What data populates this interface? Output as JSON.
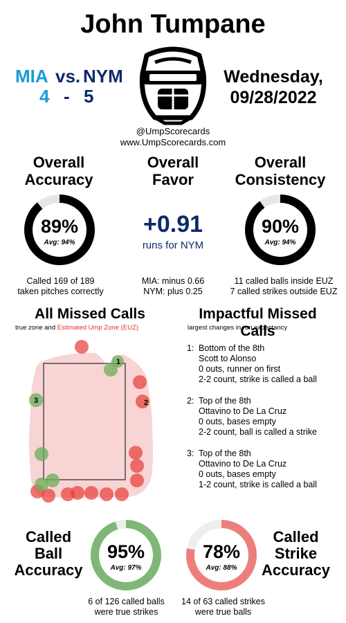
{
  "header": {
    "umpire_name": "John Tumpane",
    "away_team": "MIA",
    "vs": "vs.",
    "home_team": "NYM",
    "away_score": "4",
    "dash": "-",
    "home_score": "5",
    "date_line1": "Wednesday,",
    "date_line2": "09/28/2022",
    "handle": "@UmpScorecards",
    "website": "www.UmpScorecards.com",
    "colors": {
      "away": "#1b9ad6",
      "home": "#0c2a6b"
    }
  },
  "accuracy": {
    "title1": "Overall",
    "title2": "Accuracy",
    "value": "89%",
    "avg": "Avg: 94%",
    "fraction": 0.89,
    "desc1": "Called 169 of 189",
    "desc2": "taken pitches correctly"
  },
  "favor": {
    "title1": "Overall",
    "title2": "Favor",
    "value": "+0.91",
    "label": "runs for NYM",
    "line1": "MIA: minus 0.66",
    "line2": "NYM: plus 0.25",
    "color": "#0c2a6b"
  },
  "consistency": {
    "title1": "Overall",
    "title2": "Consistency",
    "value": "90%",
    "avg": "Avg: 94%",
    "fraction": 0.9,
    "desc1": "11 called balls inside EUZ",
    "desc2": "7 called strikes outside EUZ"
  },
  "missed": {
    "title": "All Missed Calls",
    "sub_prefix": "true zone and",
    "sub_euz": "Estimated Ump Zone (EUZ)",
    "sub_euz_color": "#e0312c",
    "marker_1": "1",
    "marker_2": "2",
    "marker_3": "3",
    "colors": {
      "green": "#6fae5c",
      "red": "#e8403c",
      "zone_fill": "#f6c9c9"
    }
  },
  "impactful": {
    "title": "Impactful Missed Calls",
    "subtitle": "largest changes in run expectancy",
    "calls": [
      {
        "num": "1:",
        "inning": "Bottom of the 8th",
        "matchup": "Scott to Alonso",
        "state": "0 outs, runner on first",
        "result": "2-2 count, strike is called a ball"
      },
      {
        "num": "2:",
        "inning": "Top of the 8th",
        "matchup": "Ottavino to De La Cruz",
        "state": "0 outs, bases empty",
        "result": "2-2 count, ball is called a strike"
      },
      {
        "num": "3:",
        "inning": "Top of the 8th",
        "matchup": "Ottavino to De La Cruz",
        "state": "0 outs, bases empty",
        "result": "1-2 count, strike is called a ball"
      }
    ]
  },
  "ball_accuracy": {
    "title1": "Called",
    "title2": "Ball",
    "title3": "Accuracy",
    "value": "95%",
    "avg": "Avg: 97%",
    "fraction": 0.95,
    "color": "#7fb777",
    "desc1": "6 of 126 called balls",
    "desc2": "were true strikes"
  },
  "strike_accuracy": {
    "title1": "Called",
    "title2": "Strike",
    "title3": "Accuracy",
    "value": "78%",
    "avg": "Avg: 88%",
    "fraction": 0.78,
    "color": "#ec7f7c",
    "desc1": "14 of 63 called strikes",
    "desc2": "were true balls"
  }
}
